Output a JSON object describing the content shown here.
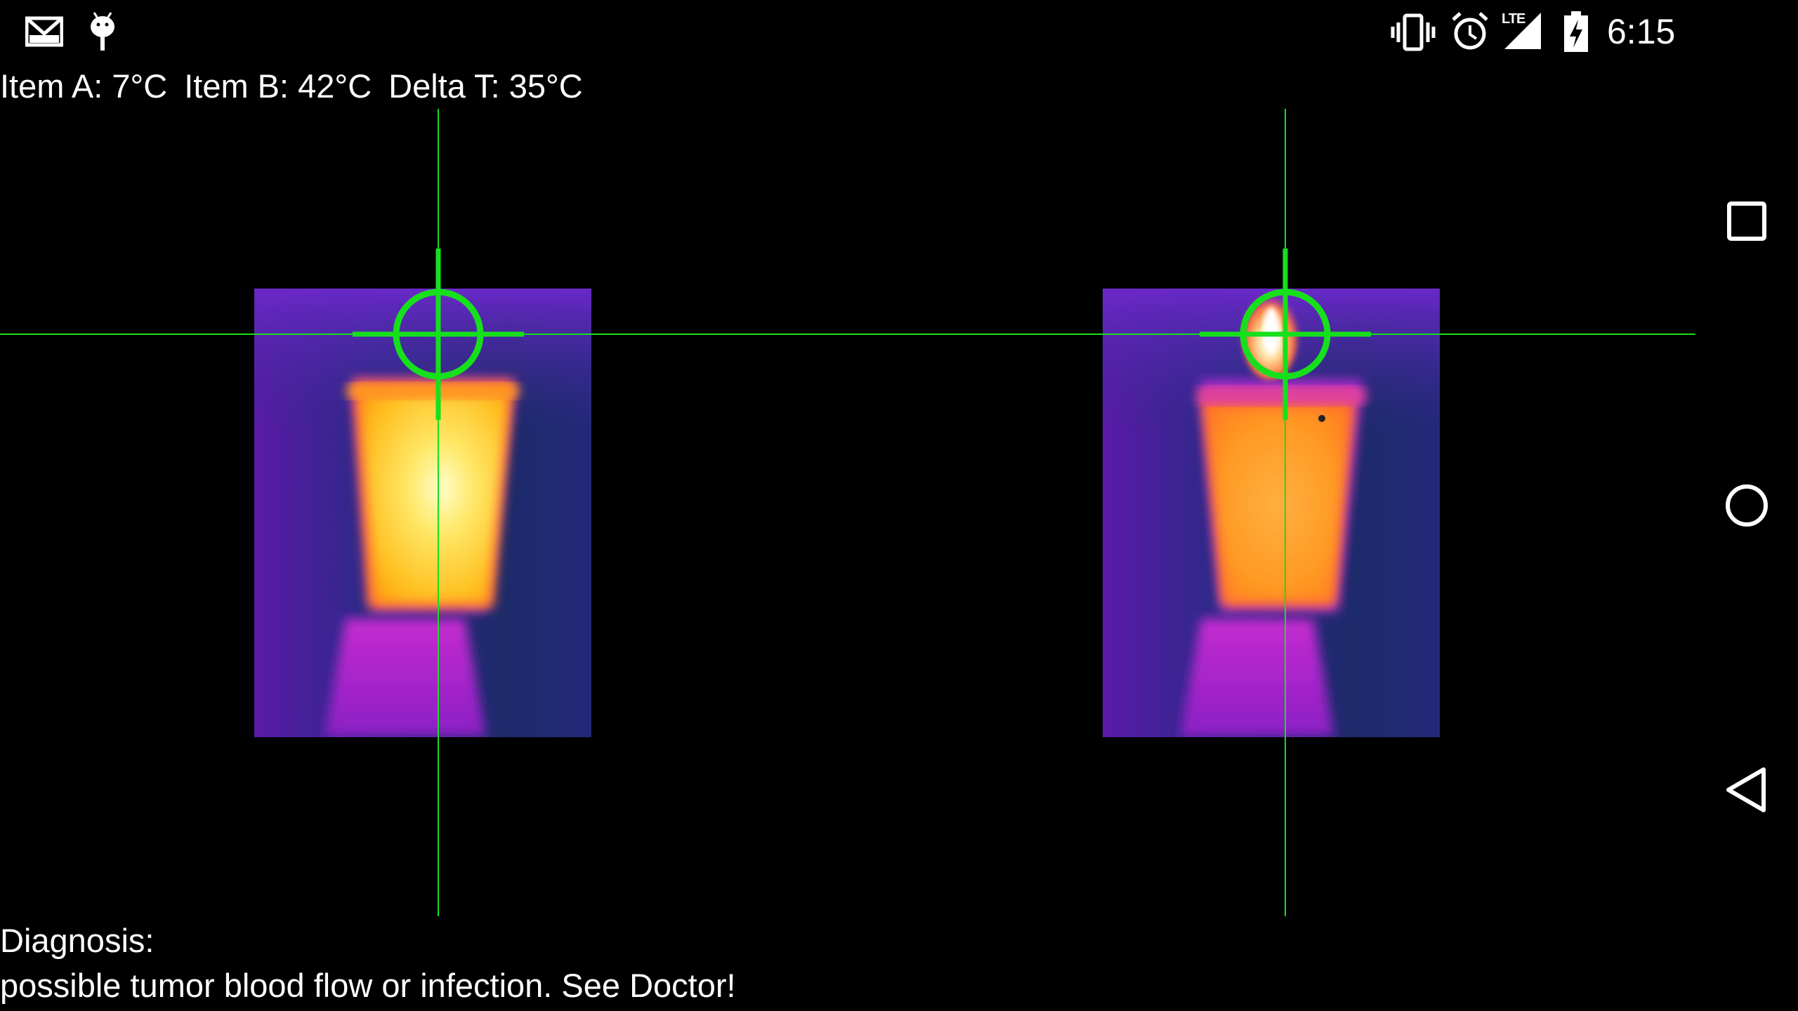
{
  "status_bar": {
    "left_icons": [
      "gmail-icon",
      "android-debug-icon"
    ],
    "right_icons": [
      "vibrate-icon",
      "alarm-icon",
      "lte-signal-icon",
      "battery-charging-icon"
    ],
    "network_label": "LTE",
    "time": "6:15"
  },
  "readout": {
    "item_a": "Item A: 7°C",
    "item_b": "Item B: 42°C",
    "delta": "Delta T: 35°C"
  },
  "colors": {
    "crosshair": "#16e01c",
    "background": "#000000",
    "thermal_cold": "#1c1f6e",
    "thermal_warm": "#9b1fd0",
    "thermal_hot": "#ffb000"
  },
  "diagnosis": {
    "heading": "Diagnosis:",
    "message": "possible tumor blood flow or infection. See Doctor!"
  },
  "nav_bar": {
    "buttons": [
      "recents-icon",
      "home-icon",
      "back-icon"
    ]
  }
}
